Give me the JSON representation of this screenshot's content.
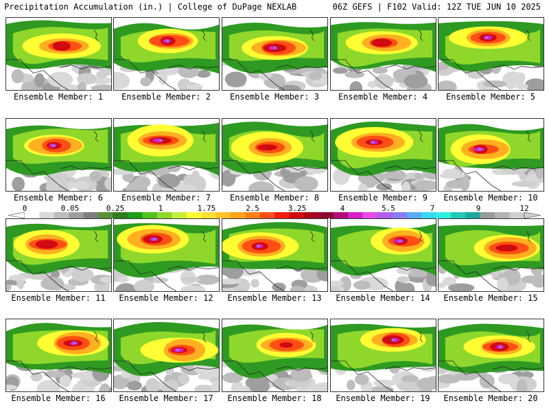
{
  "header": {
    "left": "Precipitation Accumulation (in.) | College of DuPage NEXLAB",
    "right": "06Z GEFS | F102 Valid: 12Z TUE JUN 10 2025"
  },
  "member_label_prefix": "Ensemble Member:",
  "members": [
    {
      "number": "1"
    },
    {
      "number": "2"
    },
    {
      "number": "3"
    },
    {
      "number": "4"
    },
    {
      "number": "5"
    },
    {
      "number": "6"
    },
    {
      "number": "7"
    },
    {
      "number": "8"
    },
    {
      "number": "9"
    },
    {
      "number": "10"
    },
    {
      "number": "11"
    },
    {
      "number": "12"
    },
    {
      "number": "13"
    },
    {
      "number": "14"
    },
    {
      "number": "15"
    },
    {
      "number": "16"
    },
    {
      "number": "17"
    },
    {
      "number": "18"
    },
    {
      "number": "19"
    },
    {
      "number": "20"
    }
  ],
  "colorbar": {
    "labels": [
      "0",
      "0.05",
      "0.25",
      "1",
      "1.75",
      "2.5",
      "3.25",
      "4",
      "5.5",
      "7",
      "9",
      "12"
    ],
    "colors": [
      "#ffffff",
      "#d9d9d9",
      "#bdbdbd",
      "#9e9e9e",
      "#7f7f7f",
      "#5a8f3a",
      "#2e7d1e",
      "#1a9e1a",
      "#4fc21f",
      "#8fd82b",
      "#c8ee3c",
      "#ffff33",
      "#ffe033",
      "#ffc42a",
      "#ffa21f",
      "#ff7f1a",
      "#ff4f14",
      "#f01e10",
      "#d00a10",
      "#a8061a",
      "#8a0530",
      "#b0107a",
      "#d91ecc",
      "#e64be8",
      "#b05cf0",
      "#8a7cf5",
      "#5aaaf5",
      "#38d8f5",
      "#2ef0e0",
      "#22c8b8",
      "#1aa8a0",
      "#9a9a9a",
      "#b4b4b4",
      "#cfcfcf"
    ]
  }
}
